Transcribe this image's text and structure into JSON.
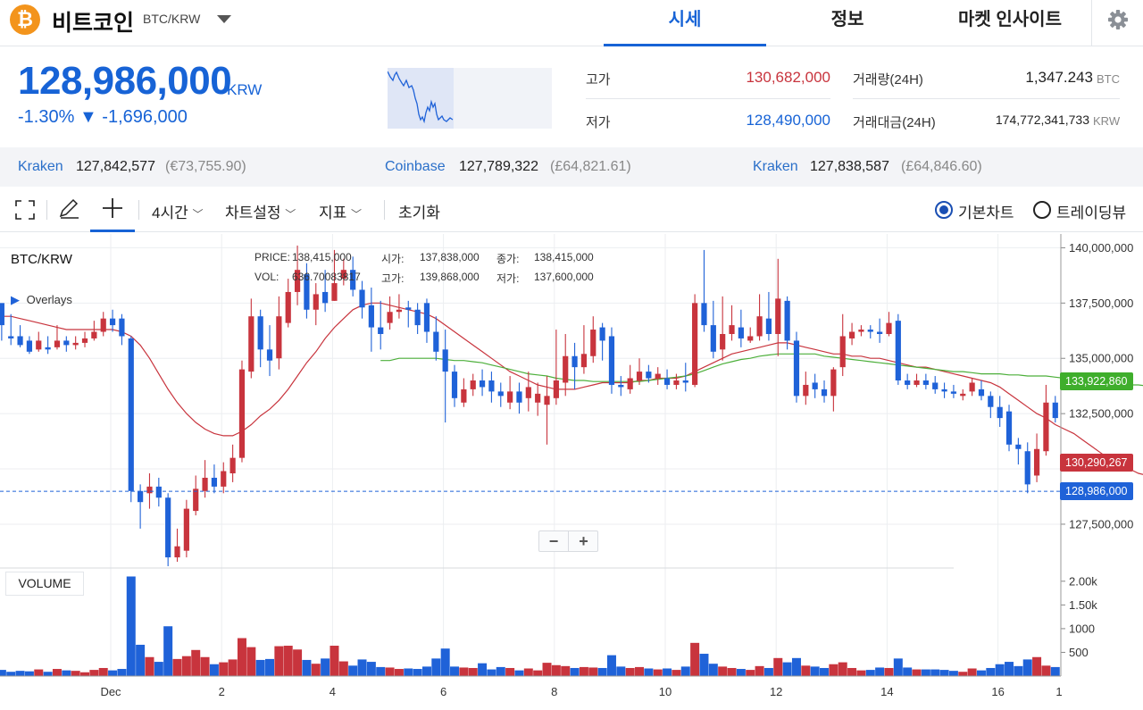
{
  "header": {
    "coin_name": "비트코인",
    "pair": "BTC/KRW",
    "tabs": [
      {
        "label": "시세",
        "active": true
      },
      {
        "label": "정보",
        "active": false
      },
      {
        "label": "마켓 인사이트",
        "active": false
      }
    ]
  },
  "price": {
    "current": "128,986,000",
    "unit": "KRW",
    "change_pct": "-1.30%",
    "change_abs": "▼ -1,696,000",
    "color": "#1763d6"
  },
  "stats": {
    "high_label": "고가",
    "high": "130,682,000",
    "high_color": "#c8343d",
    "low_label": "저가",
    "low": "128,490,000",
    "low_color": "#1763d6",
    "volume_label": "거래량(24H)",
    "volume": "1,347.243",
    "volume_unit": "BTC",
    "amount_label": "거래대금(24H)",
    "amount": "174,772,341,733",
    "amount_unit": "KRW"
  },
  "exchanges": [
    {
      "name": "Kraken",
      "price": "127,842,577",
      "fx": "(€73,755.90)"
    },
    {
      "name": "Coinbase",
      "price": "127,789,322",
      "fx": "(£64,821.61)"
    },
    {
      "name": "Kraken",
      "price": "127,838,587",
      "fx": "(£64,846.60)"
    }
  ],
  "toolbar": {
    "interval": "4시간",
    "chart_settings": "차트설정",
    "indicators": "지표",
    "reset": "초기화",
    "basic_chart": "기본차트",
    "tradingview": "트레이딩뷰",
    "basic_selected": true
  },
  "chart_overlay": {
    "symbol": "BTC/KRW",
    "overlays_label": "Overlays",
    "price_label": "PRICE:",
    "price_value": "138,415,000",
    "vol_label": "VOL:",
    "vol_value": "636.70083817",
    "open_label": "시가:",
    "open_value": "137,838,000",
    "close_label": "종가:",
    "close_value": "138,415,000",
    "high_label": "고가:",
    "high_value": "139,868,000",
    "low_label": "저가:",
    "low_value": "137,600,000",
    "volume_panel_label": "VOLUME",
    "badge_ma_long": "133,922,860",
    "badge_ma_short": "130,290,267",
    "badge_last": "128,986,000",
    "zoom_out": "−",
    "zoom_in": "+"
  },
  "chart_data": {
    "type": "candlestick",
    "y_ticks": [
      "140,000,000",
      "137,500,000",
      "135,000,000",
      "132,500,000",
      "127,500,000"
    ],
    "ylim": [
      125600000,
      140300000
    ],
    "volume_ticks": [
      "2.00k",
      "1.50k",
      "1000",
      "500"
    ],
    "volume_ylim": [
      0,
      2260
    ],
    "x_ticks": [
      "Dec",
      "2",
      "4",
      "6",
      "8",
      "10",
      "12",
      "14",
      "16",
      "1"
    ],
    "x_tick_slots": [
      0,
      12,
      24,
      36,
      48,
      60,
      72,
      84,
      96,
      108
    ],
    "x_start_slot": -11.8,
    "colors": {
      "up": "#c8343d",
      "down": "#1f62d8",
      "ma_short": "#c8343d",
      "ma_long": "#4caf3a"
    },
    "candles": [
      [
        137.5,
        136.5,
        137.3,
        135.8,
        130
      ],
      [
        136.0,
        135.9,
        137.0,
        135.6,
        90
      ],
      [
        136.0,
        135.6,
        136.5,
        135.5,
        110
      ],
      [
        135.8,
        135.3,
        136.0,
        135.2,
        100
      ],
      [
        135.4,
        135.8,
        136.2,
        135.3,
        140
      ],
      [
        135.5,
        135.4,
        136.0,
        135.2,
        90
      ],
      [
        135.5,
        135.8,
        136.5,
        135.4,
        150
      ],
      [
        135.8,
        135.6,
        136.0,
        135.3,
        120
      ],
      [
        135.6,
        135.7,
        136.0,
        135.4,
        110
      ],
      [
        135.7,
        135.9,
        136.2,
        135.5,
        80
      ],
      [
        135.9,
        136.2,
        136.7,
        135.8,
        130
      ],
      [
        136.2,
        136.8,
        137.1,
        136.0,
        170
      ],
      [
        136.8,
        136.5,
        137.2,
        136.2,
        120
      ],
      [
        136.8,
        136.0,
        137.0,
        135.6,
        150
      ],
      [
        135.9,
        129.0,
        136.0,
        128.5,
        2100
      ],
      [
        129.0,
        128.5,
        129.3,
        127.3,
        660
      ],
      [
        128.9,
        129.2,
        129.8,
        128.2,
        400
      ],
      [
        129.2,
        128.7,
        129.6,
        128.3,
        300
      ],
      [
        128.7,
        126.0,
        128.9,
        125.6,
        1050
      ],
      [
        126.0,
        126.5,
        127.3,
        125.8,
        360
      ],
      [
        126.3,
        128.2,
        128.6,
        126.0,
        420
      ],
      [
        128.1,
        129.1,
        129.7,
        127.9,
        550
      ],
      [
        129.0,
        129.6,
        130.4,
        128.7,
        400
      ],
      [
        129.6,
        129.2,
        130.2,
        128.9,
        250
      ],
      [
        129.2,
        129.9,
        130.3,
        128.9,
        290
      ],
      [
        129.8,
        130.5,
        131.1,
        129.4,
        350
      ],
      [
        130.5,
        134.5,
        134.9,
        130.3,
        800
      ],
      [
        134.4,
        136.9,
        137.7,
        134.1,
        610
      ],
      [
        136.9,
        135.4,
        137.2,
        134.6,
        340
      ],
      [
        135.4,
        134.9,
        136.5,
        134.2,
        360
      ],
      [
        135.0,
        136.9,
        137.8,
        134.5,
        630
      ],
      [
        136.6,
        138.0,
        138.6,
        136.4,
        640
      ],
      [
        138.0,
        139.0,
        140.1,
        137.4,
        560
      ],
      [
        138.8,
        137.2,
        139.3,
        136.8,
        340
      ],
      [
        137.2,
        137.9,
        138.4,
        136.5,
        260
      ],
      [
        138.0,
        137.5,
        139.0,
        137.1,
        370
      ],
      [
        137.6,
        138.4,
        139.9,
        137.6,
        640
      ],
      [
        138.6,
        139.0,
        139.5,
        138.3,
        310
      ],
      [
        139.0,
        138.1,
        139.6,
        137.8,
        220
      ],
      [
        138.1,
        137.3,
        138.5,
        136.8,
        350
      ],
      [
        137.4,
        136.4,
        138.2,
        135.3,
        300
      ],
      [
        136.4,
        136.1,
        137.6,
        135.4,
        190
      ],
      [
        136.6,
        137.1,
        137.8,
        136.3,
        180
      ],
      [
        137.1,
        137.2,
        137.9,
        136.8,
        150
      ],
      [
        137.3,
        137.2,
        137.6,
        136.4,
        160
      ],
      [
        137.2,
        136.5,
        137.5,
        136.1,
        150
      ],
      [
        137.5,
        136.2,
        137.7,
        135.7,
        200
      ],
      [
        136.2,
        135.3,
        136.9,
        134.9,
        370
      ],
      [
        135.4,
        134.4,
        136.3,
        132.1,
        580
      ],
      [
        134.4,
        133.2,
        134.7,
        132.8,
        200
      ],
      [
        133.0,
        133.6,
        134.1,
        132.8,
        180
      ],
      [
        133.6,
        134.0,
        134.3,
        133.3,
        170
      ],
      [
        134.0,
        133.7,
        134.5,
        133.3,
        270
      ],
      [
        134.0,
        133.5,
        134.4,
        133.0,
        140
      ],
      [
        133.5,
        133.3,
        133.9,
        132.8,
        190
      ],
      [
        133.0,
        133.5,
        134.2,
        132.7,
        170
      ],
      [
        133.5,
        133.0,
        133.9,
        132.5,
        120
      ],
      [
        133.2,
        133.7,
        134.4,
        132.6,
        160
      ],
      [
        133.0,
        133.4,
        133.9,
        132.4,
        120
      ],
      [
        132.9,
        133.3,
        134.2,
        131.1,
        280
      ],
      [
        133.2,
        134.0,
        136.3,
        132.9,
        230
      ],
      [
        133.9,
        135.1,
        136.1,
        133.3,
        210
      ],
      [
        135.1,
        134.6,
        135.7,
        133.6,
        170
      ],
      [
        134.6,
        135.2,
        136.5,
        134.3,
        190
      ],
      [
        135.1,
        136.3,
        136.9,
        134.8,
        180
      ],
      [
        136.4,
        135.8,
        136.6,
        134.9,
        170
      ],
      [
        136.0,
        133.8,
        136.4,
        133.4,
        440
      ],
      [
        133.8,
        133.7,
        134.2,
        133.3,
        200
      ],
      [
        133.6,
        134.1,
        134.7,
        133.4,
        170
      ],
      [
        134.0,
        134.4,
        135.0,
        133.8,
        190
      ],
      [
        134.4,
        134.1,
        134.7,
        133.9,
        160
      ],
      [
        134.1,
        134.3,
        134.6,
        133.8,
        140
      ],
      [
        134.1,
        133.8,
        134.5,
        133.6,
        160
      ],
      [
        133.8,
        134.0,
        134.3,
        133.6,
        130
      ],
      [
        134.0,
        133.9,
        134.8,
        133.5,
        200
      ],
      [
        133.8,
        137.5,
        137.9,
        133.7,
        700
      ],
      [
        137.5,
        136.5,
        139.9,
        136.2,
        470
      ],
      [
        136.5,
        135.3,
        137.6,
        135.0,
        260
      ],
      [
        135.4,
        136.1,
        137.8,
        134.9,
        200
      ],
      [
        136.1,
        136.5,
        137.4,
        135.8,
        170
      ],
      [
        136.4,
        135.9,
        137.2,
        135.5,
        150
      ],
      [
        135.8,
        136.0,
        136.4,
        135.7,
        130
      ],
      [
        136.0,
        136.9,
        137.9,
        135.8,
        210
      ],
      [
        136.8,
        136.1,
        138.0,
        135.8,
        170
      ],
      [
        136.1,
        137.7,
        139.5,
        135.1,
        380
      ],
      [
        137.6,
        135.8,
        137.8,
        135.4,
        290
      ],
      [
        135.8,
        133.3,
        136.2,
        133.0,
        380
      ],
      [
        133.3,
        133.8,
        134.4,
        132.9,
        220
      ],
      [
        133.9,
        133.6,
        134.3,
        133.2,
        200
      ],
      [
        133.6,
        133.3,
        134.0,
        133.0,
        170
      ],
      [
        133.3,
        134.5,
        134.6,
        132.6,
        250
      ],
      [
        134.6,
        136.0,
        137.0,
        134.2,
        290
      ],
      [
        135.9,
        136.2,
        136.6,
        135.6,
        170
      ],
      [
        136.2,
        136.3,
        136.5,
        136.0,
        120
      ],
      [
        136.3,
        136.2,
        136.5,
        135.9,
        130
      ],
      [
        136.2,
        136.1,
        136.8,
        135.7,
        180
      ],
      [
        136.1,
        136.6,
        137.1,
        136.0,
        170
      ],
      [
        136.7,
        134.0,
        137.0,
        133.8,
        370
      ],
      [
        134.0,
        133.8,
        134.3,
        133.6,
        180
      ],
      [
        133.8,
        134.0,
        134.3,
        133.7,
        140
      ],
      [
        134.0,
        133.8,
        134.3,
        133.6,
        140
      ],
      [
        133.9,
        133.6,
        134.2,
        133.4,
        140
      ],
      [
        133.6,
        133.5,
        133.9,
        133.2,
        130
      ],
      [
        133.5,
        133.4,
        133.8,
        133.2,
        110
      ],
      [
        133.3,
        133.4,
        133.6,
        133.1,
        90
      ],
      [
        133.5,
        133.9,
        134.1,
        133.3,
        160
      ],
      [
        133.6,
        133.3,
        134.0,
        133.1,
        120
      ],
      [
        133.3,
        132.8,
        133.5,
        132.3,
        170
      ],
      [
        132.8,
        132.3,
        133.3,
        131.9,
        250
      ],
      [
        132.6,
        131.1,
        132.9,
        130.8,
        300
      ],
      [
        131.1,
        130.9,
        131.4,
        130.2,
        210
      ],
      [
        130.8,
        129.3,
        131.2,
        128.9,
        350
      ],
      [
        129.7,
        130.9,
        131.6,
        129.4,
        400
      ],
      [
        130.8,
        133.0,
        133.8,
        130.6,
        220
      ],
      [
        133.0,
        132.3,
        133.3,
        132.1,
        190
      ],
      [
        132.8,
        132.2,
        133.4,
        131.8,
        200
      ],
      [
        132.2,
        128.4,
        132.5,
        127.8,
        810
      ],
      [
        128.4,
        128.0,
        128.8,
        127.3,
        700
      ],
      [
        128.0,
        127.5,
        128.6,
        127.0,
        520
      ],
      [
        127.5,
        126.5,
        128.1,
        126.0,
        420
      ],
      [
        126.5,
        126.9,
        127.8,
        126.0,
        310
      ],
      [
        126.9,
        129.0,
        129.3,
        126.8,
        450
      ],
      [
        129.0,
        131.0,
        131.3,
        128.7,
        250
      ],
      [
        131.0,
        130.5,
        131.2,
        130.1,
        280
      ],
      [
        130.5,
        130.0,
        130.9,
        129.6,
        270
      ],
      [
        130.3,
        129.4,
        130.8,
        129.0,
        180
      ],
      [
        129.4,
        129.2,
        129.8,
        128.9,
        150
      ],
      [
        129.4,
        129.0,
        129.6,
        128.6,
        160
      ]
    ],
    "ma_short": [
      136.9,
      136.9,
      136.8,
      136.7,
      136.6,
      136.5,
      136.4,
      136.3,
      136.3,
      136.3,
      136.3,
      136.3,
      136.3,
      136.2,
      136.0,
      135.6,
      135.0,
      134.3,
      133.6,
      133.0,
      132.5,
      132.1,
      131.8,
      131.6,
      131.5,
      131.5,
      131.7,
      132.0,
      132.4,
      132.7,
      133.1,
      133.6,
      134.2,
      134.8,
      135.3,
      135.9,
      136.4,
      136.8,
      137.2,
      137.4,
      137.5,
      137.5,
      137.4,
      137.3,
      137.2,
      137.1,
      137.0,
      136.8,
      136.5,
      136.2,
      135.9,
      135.6,
      135.3,
      135.0,
      134.7,
      134.4,
      134.2,
      134.0,
      133.8,
      133.7,
      133.6,
      133.6,
      133.6,
      133.7,
      133.8,
      133.9,
      133.9,
      133.9,
      133.9,
      134.0,
      134.0,
      134.1,
      134.1,
      134.1,
      134.2,
      134.4,
      134.6,
      134.8,
      135.0,
      135.2,
      135.3,
      135.4,
      135.5,
      135.6,
      135.7,
      135.7,
      135.6,
      135.5,
      135.4,
      135.3,
      135.2,
      135.2,
      135.1,
      135.1,
      135.0,
      135.0,
      134.9,
      134.8,
      134.7,
      134.6,
      134.6,
      134.5,
      134.4,
      134.3,
      134.2,
      134.1,
      134.0,
      133.9,
      133.7,
      133.4,
      133.1,
      132.8,
      132.5,
      132.3,
      132.0,
      131.8,
      131.6,
      131.3,
      131.0,
      130.7,
      130.4,
      130.2,
      130.0,
      129.8,
      129.7,
      129.6,
      129.5,
      129.4,
      129.4
    ],
    "ma_long_start": 41,
    "ma_long": [
      134.9,
      134.9,
      135.0,
      135.0,
      135.0,
      135.0,
      135.0,
      134.95,
      134.9,
      134.9,
      134.85,
      134.8,
      134.7,
      134.6,
      134.5,
      134.4,
      134.3,
      134.25,
      134.2,
      134.1,
      134.05,
      134.0,
      134.0,
      133.95,
      133.95,
      133.95,
      133.95,
      133.95,
      133.95,
      134.0,
      134.05,
      134.1,
      134.15,
      134.2,
      134.3,
      134.45,
      134.6,
      134.75,
      134.85,
      134.95,
      135.0,
      135.1,
      135.15,
      135.2,
      135.2,
      135.2,
      135.2,
      135.2,
      135.1,
      135.05,
      135.0,
      134.95,
      134.9,
      134.85,
      134.8,
      134.75,
      134.7,
      134.65,
      134.6,
      134.55,
      134.5,
      134.45,
      134.4,
      134.4,
      134.35,
      134.3,
      134.3,
      134.3,
      134.25,
      134.25,
      134.2,
      134.2,
      134.2,
      134.15,
      134.1,
      134.05,
      134.0,
      133.95,
      133.9,
      133.9,
      133.85,
      133.8,
      133.8,
      133.75,
      133.7,
      133.65,
      133.6,
      133.55,
      133.5,
      133.45
    ]
  }
}
